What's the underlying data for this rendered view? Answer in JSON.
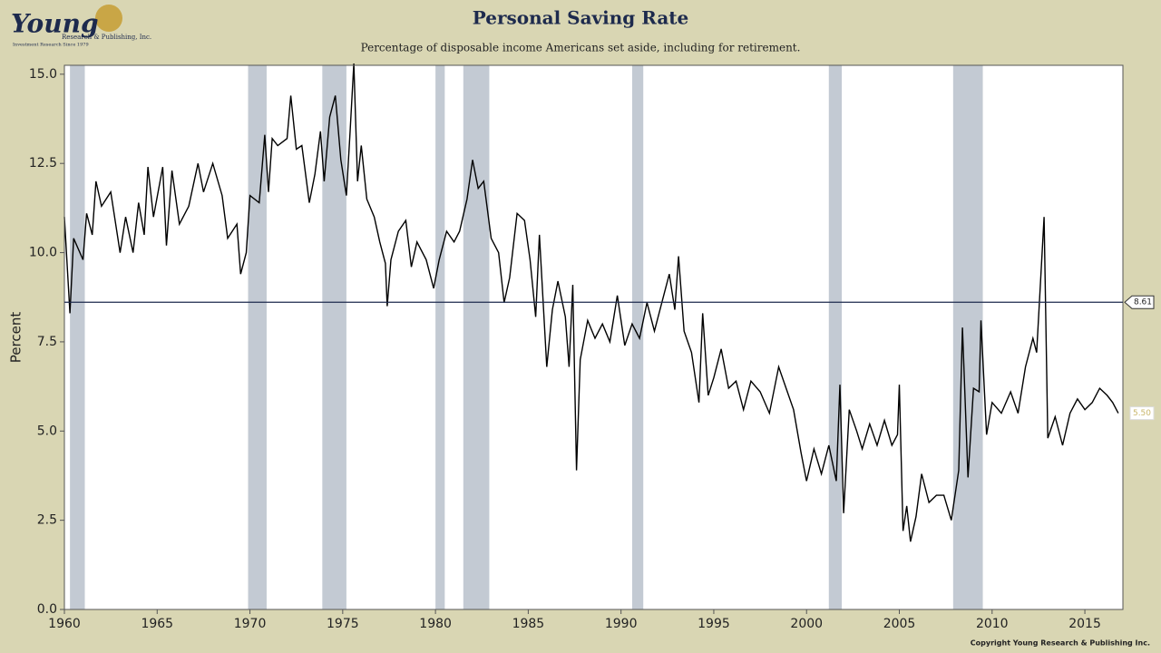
{
  "chart_data": {
    "type": "line",
    "title": "Personal Saving Rate",
    "subtitle": "Percentage of disposable income Americans set aside, including for retirement.",
    "ylabel": "Percent",
    "logo": {
      "name": "Young",
      "line1": "Research & Publishing, Inc.",
      "line2": "Investment Research Since 1979"
    },
    "copyright": "Copyright Young Research & Publishing Inc.",
    "color": "#000000",
    "recession_color": "#c3cad3",
    "x": [
      1960.0,
      1960.3,
      1960.5,
      1961.0,
      1961.2,
      1961.5,
      1961.7,
      1962.0,
      1962.5,
      1963.0,
      1963.3,
      1963.7,
      1964.0,
      1964.3,
      1964.5,
      1964.8,
      1965.3,
      1965.5,
      1965.8,
      1966.2,
      1966.7,
      1967.2,
      1967.5,
      1968.0,
      1968.5,
      1968.8,
      1969.3,
      1969.5,
      1969.8,
      1970.0,
      1970.5,
      1970.8,
      1971.0,
      1971.2,
      1971.5,
      1972.0,
      1972.2,
      1972.5,
      1972.8,
      1973.2,
      1973.5,
      1973.8,
      1974.0,
      1974.3,
      1974.6,
      1974.9,
      1975.2,
      1975.4,
      1975.6,
      1975.8,
      1976.0,
      1976.3,
      1976.7,
      1977.0,
      1977.3,
      1977.4,
      1977.6,
      1978.0,
      1978.4,
      1978.7,
      1979.0,
      1979.5,
      1979.9,
      1980.2,
      1980.6,
      1981.0,
      1981.3,
      1981.7,
      1982.0,
      1982.3,
      1982.6,
      1983.0,
      1983.4,
      1983.7,
      1984.0,
      1984.4,
      1984.8,
      1985.1,
      1985.4,
      1985.6,
      1986.0,
      1986.3,
      1986.6,
      1987.0,
      1987.2,
      1987.4,
      1987.6,
      1987.8,
      1988.2,
      1988.6,
      1989.0,
      1989.4,
      1989.8,
      1990.2,
      1990.6,
      1991.0,
      1991.4,
      1991.8,
      1992.2,
      1992.6,
      1992.9,
      1993.1,
      1993.4,
      1993.8,
      1994.2,
      1994.4,
      1994.7,
      1995.0,
      1995.4,
      1995.8,
      1996.2,
      1996.6,
      1997.0,
      1997.5,
      1998.0,
      1998.5,
      1998.9,
      1999.3,
      1999.7,
      2000.0,
      2000.4,
      2000.8,
      2001.2,
      2001.6,
      2001.8,
      2002.0,
      2002.3,
      2002.7,
      2003.0,
      2003.4,
      2003.8,
      2004.2,
      2004.6,
      2004.9,
      2005.0,
      2005.2,
      2005.4,
      2005.6,
      2005.9,
      2006.2,
      2006.6,
      2007.0,
      2007.4,
      2007.8,
      2008.2,
      2008.4,
      2008.7,
      2009.0,
      2009.3,
      2009.4,
      2009.7,
      2010.0,
      2010.5,
      2011.0,
      2011.4,
      2011.8,
      2012.2,
      2012.4,
      2012.8,
      2013.0,
      2013.4,
      2013.8,
      2014.2,
      2014.6,
      2015.0,
      2015.4,
      2015.8,
      2016.2,
      2016.5,
      2016.8
    ],
    "values": [
      11.0,
      8.3,
      10.4,
      9.8,
      11.1,
      10.5,
      12.0,
      11.3,
      11.7,
      10.0,
      11.0,
      10.0,
      11.4,
      10.5,
      12.4,
      11.0,
      12.4,
      10.2,
      12.3,
      10.8,
      11.3,
      12.5,
      11.7,
      12.5,
      11.6,
      10.4,
      10.8,
      9.4,
      10.0,
      11.6,
      11.4,
      13.3,
      11.7,
      13.2,
      13.0,
      13.2,
      14.4,
      12.9,
      13.0,
      11.4,
      12.2,
      13.4,
      12.0,
      13.8,
      14.4,
      12.6,
      11.6,
      13.4,
      15.3,
      12.0,
      13.0,
      11.5,
      11.0,
      10.3,
      9.7,
      8.5,
      9.8,
      10.6,
      10.9,
      9.6,
      10.3,
      9.8,
      9.0,
      9.8,
      10.6,
      10.3,
      10.6,
      11.5,
      12.6,
      11.8,
      12.0,
      10.4,
      10.0,
      8.6,
      9.3,
      11.1,
      10.9,
      9.8,
      8.2,
      10.5,
      6.8,
      8.4,
      9.2,
      8.2,
      6.8,
      9.1,
      3.9,
      7.0,
      8.1,
      7.6,
      8.0,
      7.5,
      8.8,
      7.4,
      8.0,
      7.6,
      8.6,
      7.8,
      8.6,
      9.4,
      8.4,
      9.9,
      7.8,
      7.2,
      5.8,
      8.3,
      6.0,
      6.5,
      7.3,
      6.2,
      6.4,
      5.6,
      6.4,
      6.1,
      5.5,
      6.8,
      6.2,
      5.6,
      4.4,
      3.6,
      4.5,
      3.8,
      4.6,
      3.6,
      6.3,
      2.7,
      5.6,
      5.0,
      4.5,
      5.2,
      4.6,
      5.3,
      4.6,
      4.9,
      6.3,
      2.2,
      2.9,
      1.9,
      2.6,
      3.8,
      3.0,
      3.2,
      3.2,
      2.5,
      3.9,
      7.9,
      3.7,
      6.2,
      6.1,
      8.1,
      4.9,
      5.8,
      5.5,
      6.1,
      5.5,
      6.8,
      7.6,
      7.2,
      11.0,
      4.8,
      5.4,
      4.6,
      5.5,
      5.9,
      5.6,
      5.8,
      6.2,
      6.0,
      5.8,
      5.5
    ],
    "recessions": [
      [
        1960.3,
        1961.1
      ],
      [
        1969.9,
        1970.9
      ],
      [
        1973.9,
        1975.2
      ],
      [
        1980.0,
        1980.5
      ],
      [
        1981.5,
        1982.9
      ],
      [
        1990.6,
        1991.2
      ],
      [
        2001.2,
        2001.9
      ],
      [
        2007.9,
        2009.5
      ]
    ],
    "reference_line": 8.61,
    "end_label": {
      "value": 5.5,
      "label": "5.50"
    },
    "xlim": [
      1960,
      2017.05
    ],
    "xticks": [
      1960,
      1965,
      1970,
      1975,
      1980,
      1985,
      1990,
      1995,
      2000,
      2005,
      2010,
      2015
    ],
    "ylim": [
      0,
      15.25
    ],
    "yticks": [
      {
        "value": 0,
        "label": "0.0"
      },
      2.5,
      {
        "value": 5,
        "label": "5.0"
      },
      7.5,
      {
        "value": 10,
        "label": "10.0"
      },
      12.5,
      {
        "value": 15,
        "label": "15.0"
      }
    ]
  }
}
